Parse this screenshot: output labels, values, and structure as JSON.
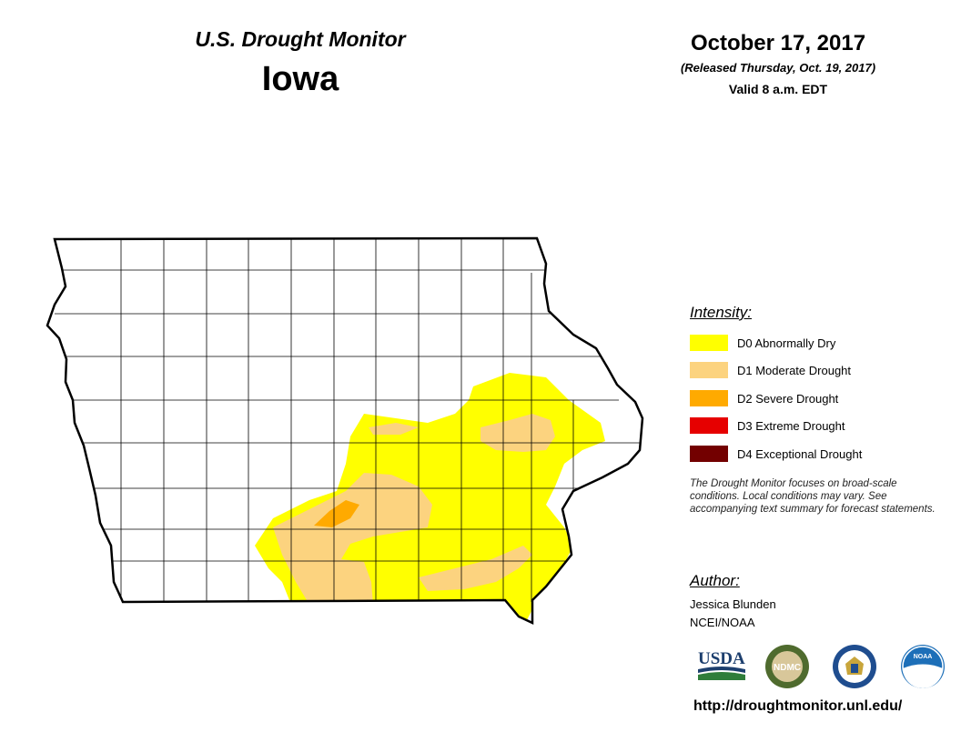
{
  "header": {
    "title": "U.S. Drought Monitor",
    "state": "Iowa",
    "date": "October 17, 2017",
    "released": "(Released Thursday, Oct. 19, 2017)",
    "valid": "Valid 8 a.m. EDT"
  },
  "legend": {
    "title": "Intensity:",
    "items": [
      {
        "label": "D0 Abnormally Dry",
        "color": "#ffff00"
      },
      {
        "label": "D1 Moderate Drought",
        "color": "#fcd37f"
      },
      {
        "label": "D2 Severe Drought",
        "color": "#ffaa00"
      },
      {
        "label": "D3 Extreme Drought",
        "color": "#e60000"
      },
      {
        "label": "D4 Exceptional Drought",
        "color": "#730000"
      }
    ]
  },
  "note": "The Drought Monitor focuses on broad-scale conditions. Local conditions may vary. See accompanying text summary for forecast statements.",
  "author": {
    "title": "Author:",
    "name": "Jessica Blunden",
    "org": "NCEI/NOAA"
  },
  "logos": {
    "usda": "USDA",
    "ndmc": "NDMC",
    "doc": "commerce-seal-icon",
    "noaa": "NOAA"
  },
  "url": "http://droughtmonitor.unl.edu/"
}
